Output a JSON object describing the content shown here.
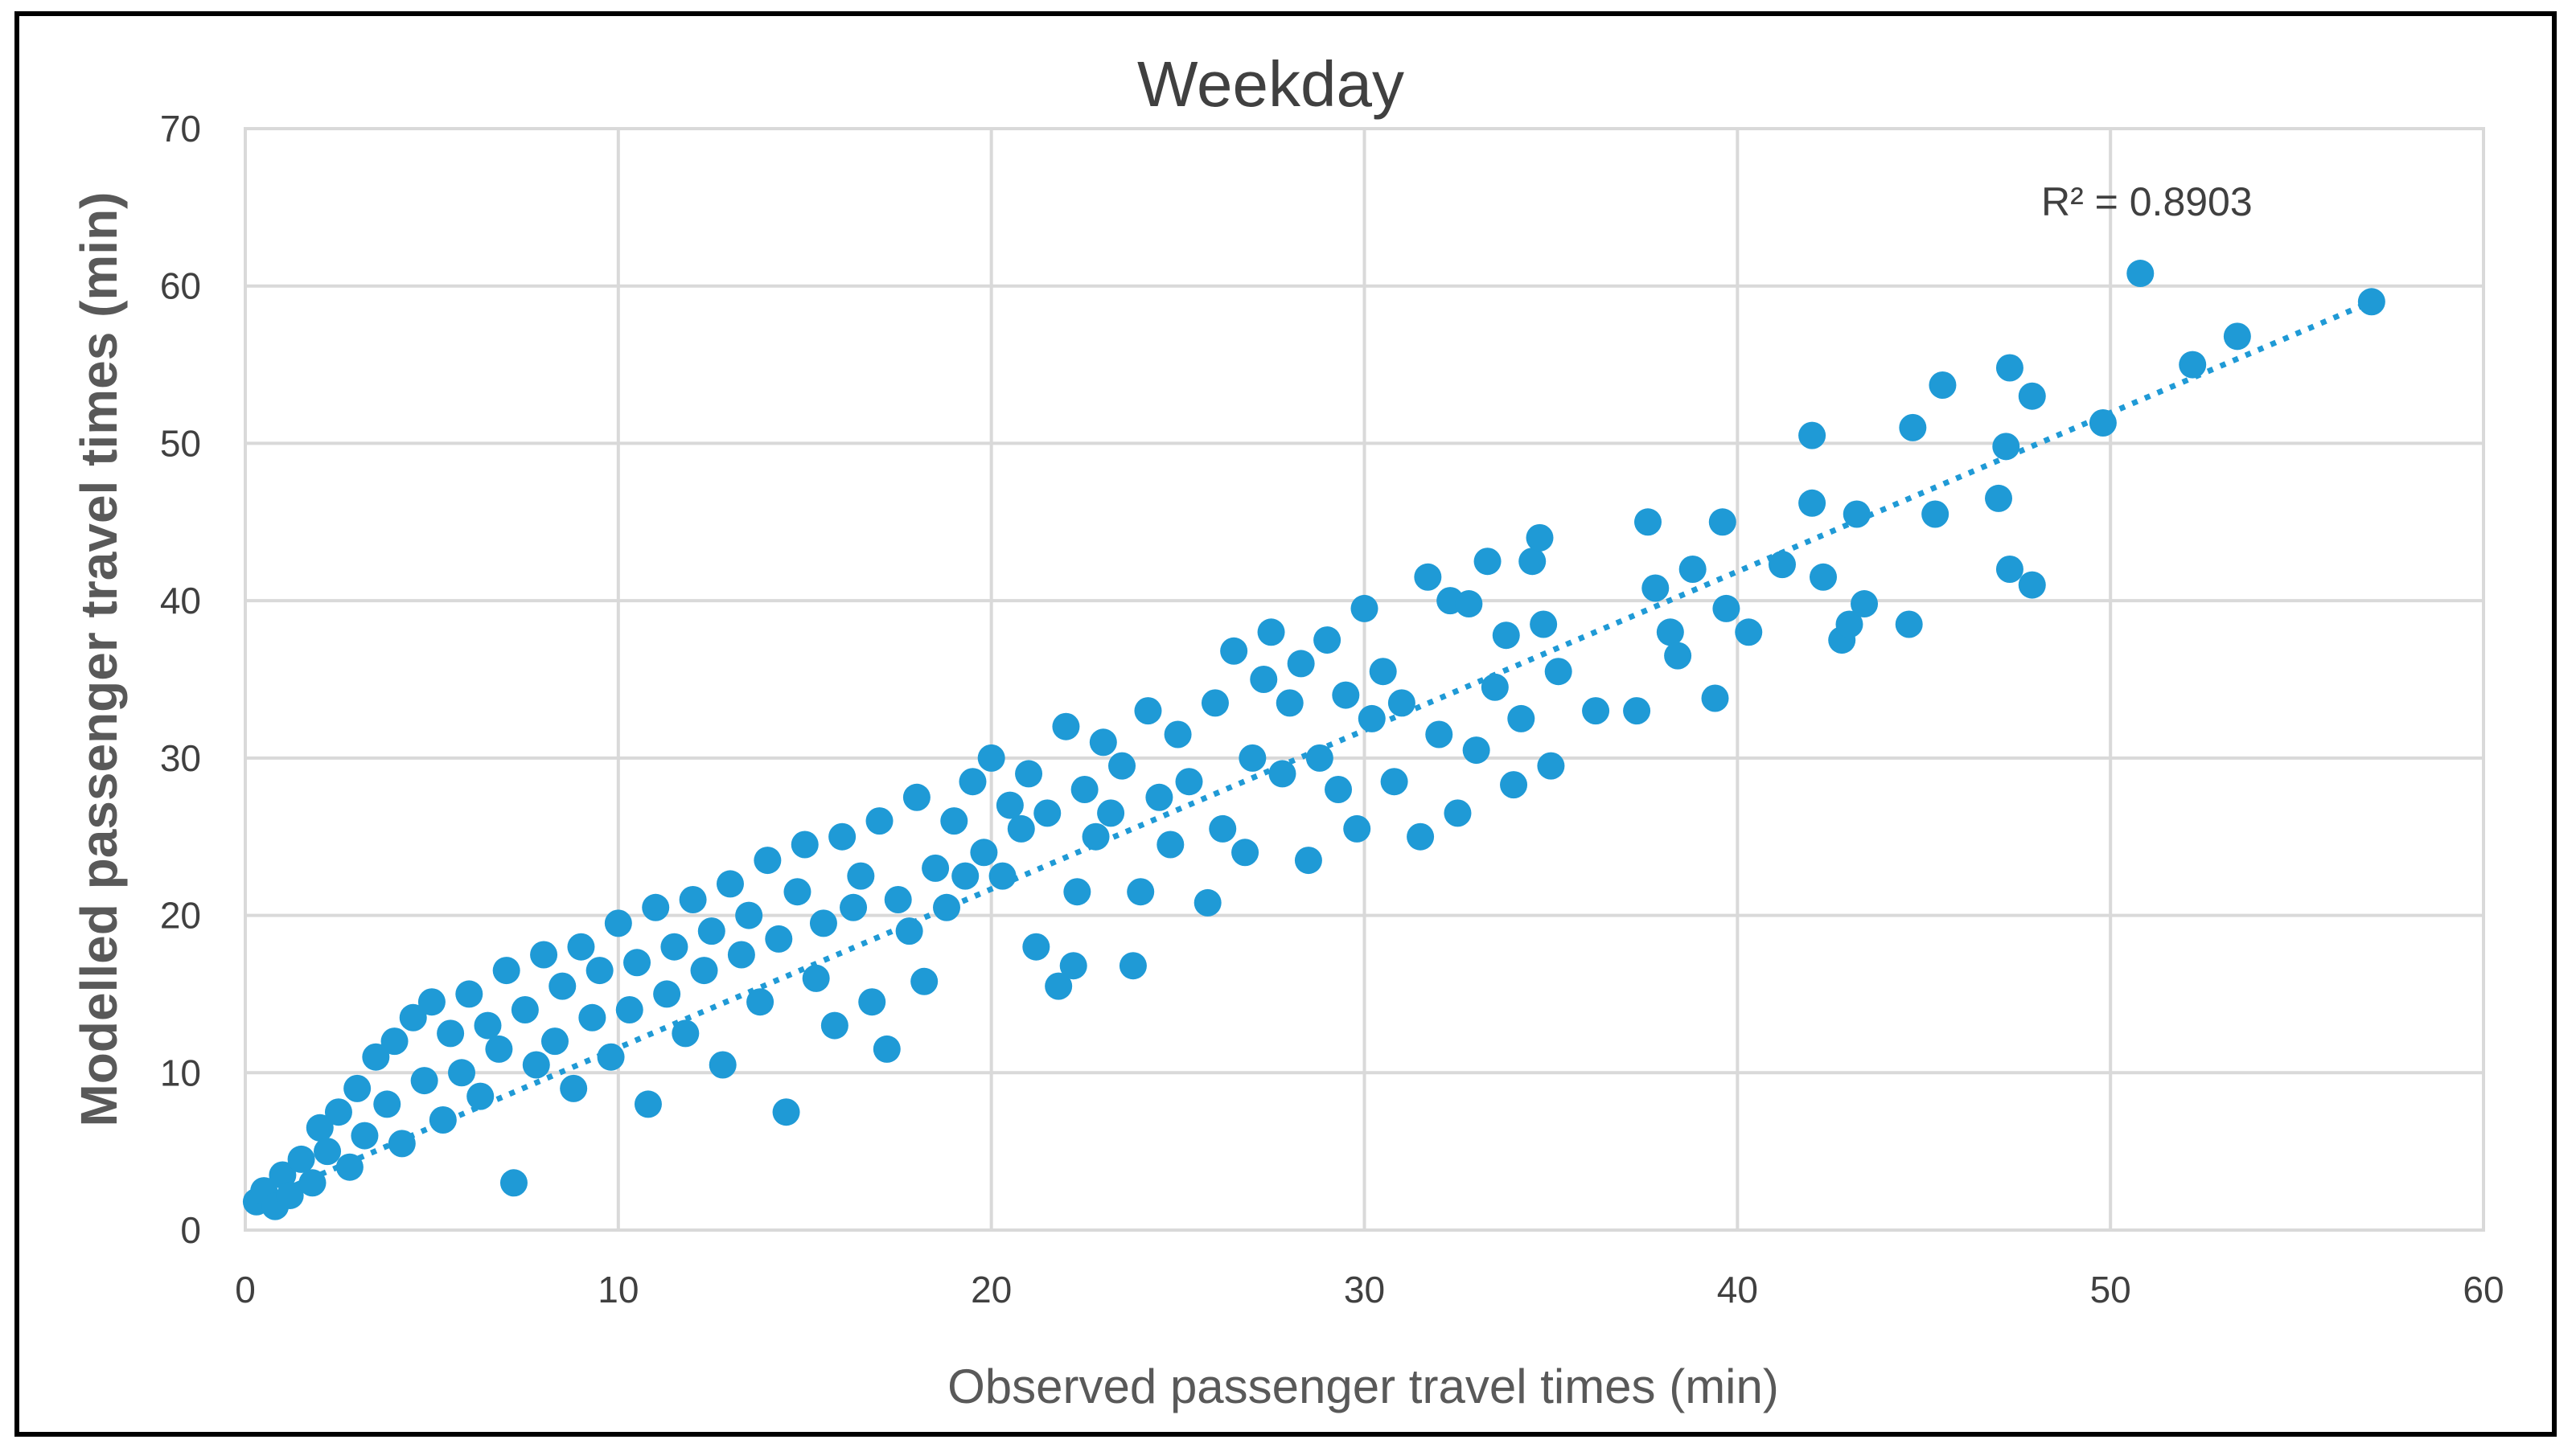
{
  "chart_data": {
    "type": "scatter",
    "title": "Weekday",
    "xlabel": "Observed passenger travel times (min)",
    "ylabel": "Modelled passenger travel times (min)",
    "xlim": [
      0,
      60
    ],
    "ylim": [
      0,
      70
    ],
    "x_ticks": [
      "0",
      "10",
      "20",
      "30",
      "40",
      "50",
      "60"
    ],
    "y_ticks": [
      "0",
      "10",
      "20",
      "30",
      "40",
      "50",
      "60",
      "70"
    ],
    "grid": true,
    "marker_color": "#1F9AD6",
    "annotation": "R² = 0.8903",
    "trendline": {
      "style": "dotted",
      "x": [
        0,
        57
      ],
      "y": [
        1.5,
        59
      ]
    },
    "points": [
      [
        0.3,
        1.8
      ],
      [
        0.5,
        2.5
      ],
      [
        0.8,
        1.5
      ],
      [
        1.0,
        3.5
      ],
      [
        1.2,
        2.2
      ],
      [
        1.5,
        4.5
      ],
      [
        1.8,
        3.0
      ],
      [
        2.0,
        6.5
      ],
      [
        2.2,
        5.0
      ],
      [
        2.5,
        7.5
      ],
      [
        2.8,
        4.0
      ],
      [
        3.0,
        9.0
      ],
      [
        3.2,
        6.0
      ],
      [
        3.5,
        11.0
      ],
      [
        3.8,
        8.0
      ],
      [
        4.0,
        12.0
      ],
      [
        4.2,
        5.5
      ],
      [
        4.5,
        13.5
      ],
      [
        4.8,
        9.5
      ],
      [
        5.0,
        14.5
      ],
      [
        5.3,
        7.0
      ],
      [
        5.5,
        12.5
      ],
      [
        5.8,
        10.0
      ],
      [
        6.0,
        15.0
      ],
      [
        6.3,
        8.5
      ],
      [
        6.5,
        13.0
      ],
      [
        6.8,
        11.5
      ],
      [
        7.0,
        16.5
      ],
      [
        7.2,
        3.0
      ],
      [
        7.5,
        14.0
      ],
      [
        7.8,
        10.5
      ],
      [
        8.0,
        17.5
      ],
      [
        8.3,
        12.0
      ],
      [
        8.5,
        15.5
      ],
      [
        8.8,
        9.0
      ],
      [
        9.0,
        18.0
      ],
      [
        9.3,
        13.5
      ],
      [
        9.5,
        16.5
      ],
      [
        9.8,
        11.0
      ],
      [
        10.0,
        19.5
      ],
      [
        10.3,
        14.0
      ],
      [
        10.5,
        17.0
      ],
      [
        10.8,
        8.0
      ],
      [
        11.0,
        20.5
      ],
      [
        11.3,
        15.0
      ],
      [
        11.5,
        18.0
      ],
      [
        11.8,
        12.5
      ],
      [
        12.0,
        21.0
      ],
      [
        12.3,
        16.5
      ],
      [
        12.5,
        19.0
      ],
      [
        12.8,
        10.5
      ],
      [
        13.0,
        22.0
      ],
      [
        13.3,
        17.5
      ],
      [
        13.5,
        20.0
      ],
      [
        13.8,
        14.5
      ],
      [
        14.0,
        23.5
      ],
      [
        14.3,
        18.5
      ],
      [
        14.5,
        7.5
      ],
      [
        14.8,
        21.5
      ],
      [
        15.0,
        24.5
      ],
      [
        15.3,
        16.0
      ],
      [
        15.5,
        19.5
      ],
      [
        15.8,
        13.0
      ],
      [
        16.0,
        25.0
      ],
      [
        16.3,
        20.5
      ],
      [
        16.5,
        22.5
      ],
      [
        16.8,
        14.5
      ],
      [
        17.0,
        26.0
      ],
      [
        17.2,
        11.5
      ],
      [
        17.5,
        21.0
      ],
      [
        17.8,
        19.0
      ],
      [
        18.0,
        27.5
      ],
      [
        18.2,
        15.8
      ],
      [
        18.5,
        23.0
      ],
      [
        18.8,
        20.5
      ],
      [
        19.0,
        26.0
      ],
      [
        19.3,
        22.5
      ],
      [
        19.5,
        28.5
      ],
      [
        19.8,
        24.0
      ],
      [
        20.0,
        30.0
      ],
      [
        20.3,
        22.5
      ],
      [
        20.5,
        27.0
      ],
      [
        20.8,
        25.5
      ],
      [
        21.0,
        29.0
      ],
      [
        21.2,
        18.0
      ],
      [
        21.5,
        26.5
      ],
      [
        21.8,
        15.5
      ],
      [
        22.0,
        32.0
      ],
      [
        22.2,
        16.8
      ],
      [
        22.3,
        21.5
      ],
      [
        22.5,
        28.0
      ],
      [
        22.8,
        25.0
      ],
      [
        23.0,
        31.0
      ],
      [
        23.2,
        26.5
      ],
      [
        23.5,
        29.5
      ],
      [
        23.8,
        16.8
      ],
      [
        24.0,
        21.5
      ],
      [
        24.2,
        33.0
      ],
      [
        24.5,
        27.5
      ],
      [
        24.8,
        24.5
      ],
      [
        25.0,
        31.5
      ],
      [
        25.3,
        28.5
      ],
      [
        25.8,
        20.8
      ],
      [
        26.0,
        33.5
      ],
      [
        26.2,
        25.5
      ],
      [
        26.5,
        36.8
      ],
      [
        26.8,
        24.0
      ],
      [
        27.0,
        30.0
      ],
      [
        27.3,
        35.0
      ],
      [
        27.5,
        38.0
      ],
      [
        27.8,
        29.0
      ],
      [
        28.0,
        33.5
      ],
      [
        28.3,
        36.0
      ],
      [
        28.5,
        23.5
      ],
      [
        28.8,
        30.0
      ],
      [
        29.0,
        37.5
      ],
      [
        29.3,
        28.0
      ],
      [
        29.5,
        34.0
      ],
      [
        29.8,
        25.5
      ],
      [
        30.0,
        39.5
      ],
      [
        30.2,
        32.5
      ],
      [
        30.5,
        35.5
      ],
      [
        30.8,
        28.5
      ],
      [
        31.0,
        33.5
      ],
      [
        31.5,
        25.0
      ],
      [
        31.7,
        41.5
      ],
      [
        32.0,
        31.5
      ],
      [
        32.3,
        40.0
      ],
      [
        32.5,
        26.5
      ],
      [
        32.8,
        39.8
      ],
      [
        33.0,
        30.5
      ],
      [
        33.3,
        42.5
      ],
      [
        33.5,
        34.5
      ],
      [
        33.8,
        37.8
      ],
      [
        34.0,
        28.3
      ],
      [
        34.2,
        32.5
      ],
      [
        34.5,
        42.5
      ],
      [
        34.7,
        44.0
      ],
      [
        34.8,
        38.5
      ],
      [
        35.0,
        29.5
      ],
      [
        35.2,
        35.5
      ],
      [
        36.2,
        33.0
      ],
      [
        37.3,
        33.0
      ],
      [
        37.6,
        45.0
      ],
      [
        37.8,
        40.8
      ],
      [
        38.2,
        38.0
      ],
      [
        38.4,
        36.5
      ],
      [
        38.8,
        42.0
      ],
      [
        39.4,
        33.8
      ],
      [
        39.6,
        45.0
      ],
      [
        39.7,
        39.5
      ],
      [
        40.3,
        38.0
      ],
      [
        41.2,
        42.3
      ],
      [
        42.0,
        50.5
      ],
      [
        42.0,
        46.2
      ],
      [
        42.3,
        41.5
      ],
      [
        42.8,
        37.5
      ],
      [
        43.0,
        38.5
      ],
      [
        43.2,
        45.5
      ],
      [
        43.4,
        39.8
      ],
      [
        44.6,
        38.5
      ],
      [
        44.7,
        51.0
      ],
      [
        45.3,
        45.5
      ],
      [
        45.5,
        53.7
      ],
      [
        47.0,
        46.5
      ],
      [
        47.2,
        49.8
      ],
      [
        47.3,
        54.8
      ],
      [
        47.3,
        42.0
      ],
      [
        47.9,
        41.0
      ],
      [
        47.9,
        53.0
      ],
      [
        49.8,
        51.3
      ],
      [
        50.8,
        60.8
      ],
      [
        52.2,
        55.0
      ],
      [
        53.4,
        56.8
      ],
      [
        57.0,
        59.0
      ]
    ]
  }
}
